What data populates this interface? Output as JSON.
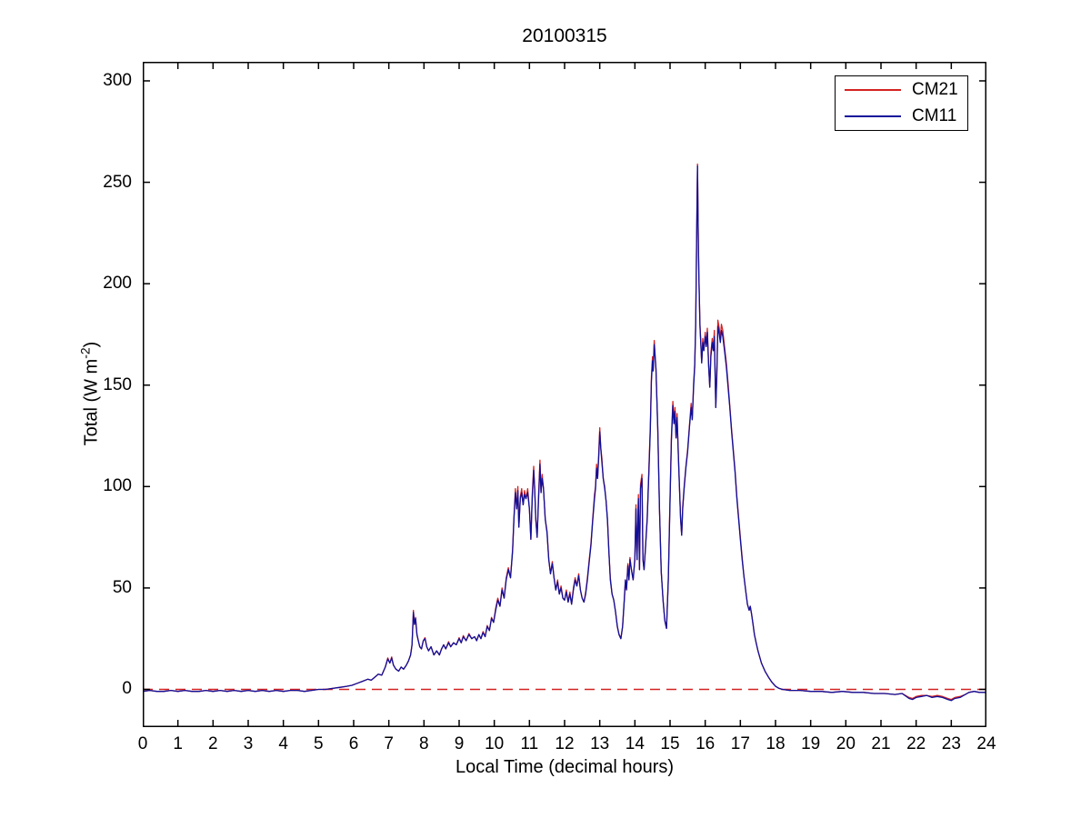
{
  "chart_data": {
    "type": "line",
    "title": "20100315",
    "xlabel": "Local Time (decimal hours)",
    "ylabel_parts": {
      "pre": "Total (W m",
      "sup": "-2",
      "post": ")"
    },
    "xlim": [
      0,
      24
    ],
    "ylim": [
      -18.6,
      309.4
    ],
    "xticks": [
      0,
      1,
      2,
      3,
      4,
      5,
      6,
      7,
      8,
      9,
      10,
      11,
      12,
      13,
      14,
      15,
      16,
      17,
      18,
      19,
      20,
      21,
      22,
      23,
      24
    ],
    "yticks": [
      0,
      50,
      100,
      150,
      200,
      250,
      300
    ],
    "grid": false,
    "legend_position": "top-right",
    "colors": {
      "cm21": "#d42222",
      "cm11": "#10109a",
      "zero_line": "#d42222",
      "axis": "#000000"
    },
    "legend": [
      {
        "name": "CM21",
        "color": "#d42222"
      },
      {
        "name": "CM11",
        "color": "#10109a"
      }
    ],
    "zero_line": {
      "y": 0,
      "style": "dashed",
      "color": "#d42222"
    },
    "series_note": "points are [t_hours, CM11_value, CM21_value] in W m-2",
    "points": [
      [
        0,
        -1,
        -1
      ],
      [
        0.2,
        -0.5,
        -0.5
      ],
      [
        0.4,
        -1,
        -1
      ],
      [
        0.6,
        -1,
        -1
      ],
      [
        0.8,
        -0.5,
        -0.5
      ],
      [
        1,
        -1,
        -1
      ],
      [
        1.2,
        -0.5,
        -0.5
      ],
      [
        1.4,
        -1,
        -1
      ],
      [
        1.6,
        -1,
        -1
      ],
      [
        1.8,
        -0.5,
        -0.5
      ],
      [
        2,
        -1,
        -1
      ],
      [
        2.2,
        -0.5,
        -0.5
      ],
      [
        2.4,
        -1,
        -1
      ],
      [
        2.6,
        -0.5,
        -0.5
      ],
      [
        2.8,
        -1,
        -1
      ],
      [
        3,
        -0.5,
        -0.5
      ],
      [
        3.2,
        -1,
        -1
      ],
      [
        3.4,
        -0.5,
        -0.5
      ],
      [
        3.6,
        -1,
        -1
      ],
      [
        3.8,
        -0.5,
        -0.5
      ],
      [
        4,
        -1,
        -1
      ],
      [
        4.2,
        -0.5,
        -0.5
      ],
      [
        4.4,
        -0.5,
        -0.5
      ],
      [
        4.6,
        -1,
        -1
      ],
      [
        4.8,
        -0.5,
        -0.5
      ],
      [
        5,
        0,
        0
      ],
      [
        5.2,
        0,
        0
      ],
      [
        5.4,
        0.5,
        0.5
      ],
      [
        5.6,
        1,
        1
      ],
      [
        5.8,
        1.5,
        1.5
      ],
      [
        5.95,
        2,
        2
      ],
      [
        6.1,
        3,
        3
      ],
      [
        6.25,
        4,
        4
      ],
      [
        6.4,
        5,
        5
      ],
      [
        6.5,
        4.5,
        4.5
      ],
      [
        6.6,
        6,
        6
      ],
      [
        6.7,
        7.5,
        7.5
      ],
      [
        6.8,
        7,
        7
      ],
      [
        6.9,
        11,
        11
      ],
      [
        6.97,
        15,
        15.5
      ],
      [
        7.03,
        13,
        13
      ],
      [
        7.08,
        15.5,
        16
      ],
      [
        7.13,
        12,
        12
      ],
      [
        7.2,
        10,
        10
      ],
      [
        7.28,
        9,
        9
      ],
      [
        7.35,
        11,
        11
      ],
      [
        7.42,
        10,
        10
      ],
      [
        7.5,
        12,
        12
      ],
      [
        7.56,
        14,
        14
      ],
      [
        7.62,
        17,
        17
      ],
      [
        7.66,
        22,
        22
      ],
      [
        7.7,
        38,
        39
      ],
      [
        7.73,
        32,
        32
      ],
      [
        7.76,
        35,
        35.5
      ],
      [
        7.8,
        27,
        27
      ],
      [
        7.84,
        24,
        24
      ],
      [
        7.88,
        21,
        21
      ],
      [
        7.93,
        20,
        20
      ],
      [
        7.98,
        24,
        24
      ],
      [
        8.03,
        25,
        25.5
      ],
      [
        8.08,
        21,
        21
      ],
      [
        8.13,
        19,
        19
      ],
      [
        8.2,
        21,
        21
      ],
      [
        8.28,
        17,
        17
      ],
      [
        8.36,
        19,
        19
      ],
      [
        8.44,
        17,
        17
      ],
      [
        8.5,
        20,
        20
      ],
      [
        8.56,
        22,
        22
      ],
      [
        8.62,
        20,
        20
      ],
      [
        8.7,
        23,
        23.5
      ],
      [
        8.76,
        21,
        21
      ],
      [
        8.84,
        23,
        23
      ],
      [
        8.92,
        22,
        22
      ],
      [
        9,
        25,
        25.5
      ],
      [
        9.06,
        23,
        23
      ],
      [
        9.12,
        26,
        26.5
      ],
      [
        9.2,
        24,
        24
      ],
      [
        9.28,
        27,
        27.5
      ],
      [
        9.36,
        25,
        25
      ],
      [
        9.44,
        26,
        26
      ],
      [
        9.5,
        24,
        24
      ],
      [
        9.56,
        27,
        27
      ],
      [
        9.62,
        25,
        25
      ],
      [
        9.68,
        28,
        28.5
      ],
      [
        9.74,
        26,
        26
      ],
      [
        9.8,
        31,
        31.5
      ],
      [
        9.86,
        29,
        29
      ],
      [
        9.92,
        35,
        35.5
      ],
      [
        9.98,
        33,
        33
      ],
      [
        10.04,
        39,
        40
      ],
      [
        10.1,
        44,
        45
      ],
      [
        10.16,
        41,
        41
      ],
      [
        10.22,
        49,
        50
      ],
      [
        10.28,
        45,
        45
      ],
      [
        10.34,
        54,
        55
      ],
      [
        10.4,
        59,
        60
      ],
      [
        10.46,
        55,
        55
      ],
      [
        10.52,
        68,
        69
      ],
      [
        10.56,
        84,
        85
      ],
      [
        10.6,
        97,
        99
      ],
      [
        10.64,
        89,
        89
      ],
      [
        10.67,
        98,
        100
      ],
      [
        10.7,
        80,
        80
      ],
      [
        10.74,
        94,
        95
      ],
      [
        10.78,
        97,
        99
      ],
      [
        10.82,
        91,
        91
      ],
      [
        10.86,
        96,
        98
      ],
      [
        10.9,
        94,
        94
      ],
      [
        10.95,
        97,
        99
      ],
      [
        11,
        89,
        89
      ],
      [
        11.04,
        74,
        74
      ],
      [
        11.08,
        94,
        96
      ],
      [
        11.12,
        108,
        110
      ],
      [
        11.15,
        99,
        99
      ],
      [
        11.18,
        84,
        84
      ],
      [
        11.22,
        75,
        75
      ],
      [
        11.26,
        94,
        96
      ],
      [
        11.3,
        111,
        113
      ],
      [
        11.33,
        97,
        97
      ],
      [
        11.36,
        104,
        106
      ],
      [
        11.4,
        99,
        99
      ],
      [
        11.45,
        84,
        84
      ],
      [
        11.5,
        77,
        78
      ],
      [
        11.55,
        64,
        64
      ],
      [
        11.6,
        57,
        57
      ],
      [
        11.65,
        62,
        63
      ],
      [
        11.7,
        55,
        55
      ],
      [
        11.75,
        49,
        49
      ],
      [
        11.8,
        53,
        54
      ],
      [
        11.85,
        47,
        47
      ],
      [
        11.9,
        50,
        51
      ],
      [
        11.95,
        45,
        45
      ],
      [
        12,
        44,
        44
      ],
      [
        12.05,
        48,
        49
      ],
      [
        12.1,
        43,
        43
      ],
      [
        12.15,
        47,
        48
      ],
      [
        12.2,
        42,
        42
      ],
      [
        12.25,
        49,
        50
      ],
      [
        12.3,
        54,
        55
      ],
      [
        12.35,
        51,
        51
      ],
      [
        12.4,
        56,
        57
      ],
      [
        12.45,
        49,
        49
      ],
      [
        12.5,
        45,
        45
      ],
      [
        12.55,
        43,
        43
      ],
      [
        12.6,
        47,
        48
      ],
      [
        12.65,
        54,
        55
      ],
      [
        12.7,
        63,
        64
      ],
      [
        12.75,
        71,
        72
      ],
      [
        12.8,
        83,
        84
      ],
      [
        12.85,
        94,
        96
      ],
      [
        12.88,
        99,
        100
      ],
      [
        12.91,
        109,
        111
      ],
      [
        12.94,
        104,
        104
      ],
      [
        12.97,
        114,
        116
      ],
      [
        13,
        127,
        129
      ],
      [
        13.03,
        119,
        119
      ],
      [
        13.06,
        112,
        114
      ],
      [
        13.1,
        104,
        104
      ],
      [
        13.14,
        99,
        100
      ],
      [
        13.18,
        93,
        93
      ],
      [
        13.22,
        83,
        84
      ],
      [
        13.26,
        68,
        68
      ],
      [
        13.3,
        54,
        55
      ],
      [
        13.35,
        47,
        47
      ],
      [
        13.4,
        44,
        44
      ],
      [
        13.45,
        38,
        38
      ],
      [
        13.5,
        31,
        31
      ],
      [
        13.55,
        27,
        27
      ],
      [
        13.6,
        25,
        25
      ],
      [
        13.65,
        31,
        31
      ],
      [
        13.7,
        44,
        45
      ],
      [
        13.73,
        54,
        54
      ],
      [
        13.76,
        49,
        49
      ],
      [
        13.8,
        61,
        62
      ],
      [
        13.83,
        54,
        54
      ],
      [
        13.86,
        64,
        65
      ],
      [
        13.9,
        59,
        59
      ],
      [
        13.95,
        54,
        54
      ],
      [
        14,
        64,
        65
      ],
      [
        14.03,
        89,
        91
      ],
      [
        14.06,
        64,
        64
      ],
      [
        14.1,
        94,
        96
      ],
      [
        14.13,
        59,
        59
      ],
      [
        14.16,
        99,
        101
      ],
      [
        14.2,
        104,
        106
      ],
      [
        14.23,
        64,
        64
      ],
      [
        14.26,
        59,
        59
      ],
      [
        14.3,
        69,
        70
      ],
      [
        14.35,
        84,
        85
      ],
      [
        14.4,
        108,
        110
      ],
      [
        14.44,
        128,
        130
      ],
      [
        14.47,
        152,
        154
      ],
      [
        14.5,
        162,
        164
      ],
      [
        14.52,
        157,
        157
      ],
      [
        14.55,
        170,
        172
      ],
      [
        14.6,
        158,
        158
      ],
      [
        14.65,
        128,
        129
      ],
      [
        14.7,
        88,
        89
      ],
      [
        14.75,
        58,
        58
      ],
      [
        14.8,
        44,
        44
      ],
      [
        14.85,
        34,
        34
      ],
      [
        14.9,
        30,
        30
      ],
      [
        14.95,
        54,
        55
      ],
      [
        15,
        93,
        95
      ],
      [
        15.04,
        123,
        125
      ],
      [
        15.08,
        140,
        142
      ],
      [
        15.11,
        131,
        131
      ],
      [
        15.14,
        137,
        139
      ],
      [
        15.17,
        124,
        124
      ],
      [
        15.2,
        134,
        136
      ],
      [
        15.25,
        108,
        108
      ],
      [
        15.3,
        84,
        84
      ],
      [
        15.33,
        76,
        76
      ],
      [
        15.36,
        89,
        90
      ],
      [
        15.4,
        99,
        100
      ],
      [
        15.45,
        109,
        110
      ],
      [
        15.5,
        117,
        118
      ],
      [
        15.55,
        129,
        130
      ],
      [
        15.6,
        139,
        141
      ],
      [
        15.63,
        133,
        133
      ],
      [
        15.67,
        149,
        151
      ],
      [
        15.7,
        159,
        160
      ],
      [
        15.73,
        179,
        181
      ],
      [
        15.76,
        228,
        230
      ],
      [
        15.78,
        258,
        259
      ],
      [
        15.8,
        228,
        228
      ],
      [
        15.82,
        203,
        204
      ],
      [
        15.85,
        179,
        180
      ],
      [
        15.88,
        169,
        169
      ],
      [
        15.9,
        161,
        161
      ],
      [
        15.93,
        171,
        173
      ],
      [
        15.96,
        167,
        167
      ],
      [
        16,
        174,
        176
      ],
      [
        16.03,
        169,
        169
      ],
      [
        16.06,
        176,
        178
      ],
      [
        16.1,
        159,
        159
      ],
      [
        16.13,
        149,
        149
      ],
      [
        16.16,
        164,
        166
      ],
      [
        16.2,
        171,
        173
      ],
      [
        16.23,
        167,
        167
      ],
      [
        16.26,
        174,
        177
      ],
      [
        16.3,
        139,
        139
      ],
      [
        16.33,
        154,
        156
      ],
      [
        16.36,
        179,
        182
      ],
      [
        16.4,
        175,
        178
      ],
      [
        16.43,
        171,
        173
      ],
      [
        16.46,
        177,
        180
      ],
      [
        16.5,
        174,
        177
      ],
      [
        16.55,
        167,
        169
      ],
      [
        16.6,
        159,
        161
      ],
      [
        16.65,
        149,
        151
      ],
      [
        16.7,
        139,
        140
      ],
      [
        16.75,
        127,
        128
      ],
      [
        16.8,
        117,
        118
      ],
      [
        16.85,
        107,
        108
      ],
      [
        16.9,
        94,
        95
      ],
      [
        16.95,
        84,
        85
      ],
      [
        17,
        74,
        75
      ],
      [
        17.05,
        64,
        65
      ],
      [
        17.1,
        56,
        56
      ],
      [
        17.15,
        49,
        49
      ],
      [
        17.2,
        42,
        42
      ],
      [
        17.25,
        39,
        39
      ],
      [
        17.28,
        41,
        41
      ],
      [
        17.32,
        37,
        37
      ],
      [
        17.36,
        32,
        32
      ],
      [
        17.4,
        27,
        27
      ],
      [
        17.45,
        23,
        23
      ],
      [
        17.5,
        19,
        19
      ],
      [
        17.55,
        16,
        16
      ],
      [
        17.6,
        13,
        13
      ],
      [
        17.7,
        9,
        9
      ],
      [
        17.8,
        6,
        6
      ],
      [
        17.9,
        3.5,
        3.5
      ],
      [
        18,
        1.5,
        1.5
      ],
      [
        18.1,
        0.5,
        0.5
      ],
      [
        18.2,
        0,
        0
      ],
      [
        18.4,
        -0.5,
        -0.5
      ],
      [
        18.7,
        -0.5,
        -0.5
      ],
      [
        19,
        -1,
        -1
      ],
      [
        19.3,
        -1,
        -1
      ],
      [
        19.6,
        -1.5,
        -1.5
      ],
      [
        19.9,
        -1,
        -1
      ],
      [
        20.2,
        -1.5,
        -1.5
      ],
      [
        20.5,
        -1.5,
        -1.5
      ],
      [
        20.8,
        -2,
        -2
      ],
      [
        21.1,
        -2,
        -2
      ],
      [
        21.4,
        -2.5,
        -2.5
      ],
      [
        21.6,
        -2,
        -2
      ],
      [
        21.8,
        -4.5,
        -4
      ],
      [
        21.9,
        -5,
        -4.5
      ],
      [
        22,
        -4,
        -3.5
      ],
      [
        22.15,
        -3.5,
        -3
      ],
      [
        22.3,
        -3,
        -3
      ],
      [
        22.45,
        -4,
        -3.5
      ],
      [
        22.6,
        -3.5,
        -3
      ],
      [
        22.75,
        -4,
        -3.5
      ],
      [
        22.9,
        -5,
        -4.5
      ],
      [
        23,
        -5.5,
        -5
      ],
      [
        23.1,
        -4.5,
        -4
      ],
      [
        23.25,
        -4,
        -3.5
      ],
      [
        23.4,
        -2.5,
        -2.5
      ],
      [
        23.5,
        -1.5,
        -1.5
      ],
      [
        23.65,
        -1,
        -1
      ],
      [
        23.8,
        -1.5,
        -1.5
      ],
      [
        24,
        -1.5,
        -1.5
      ]
    ]
  }
}
